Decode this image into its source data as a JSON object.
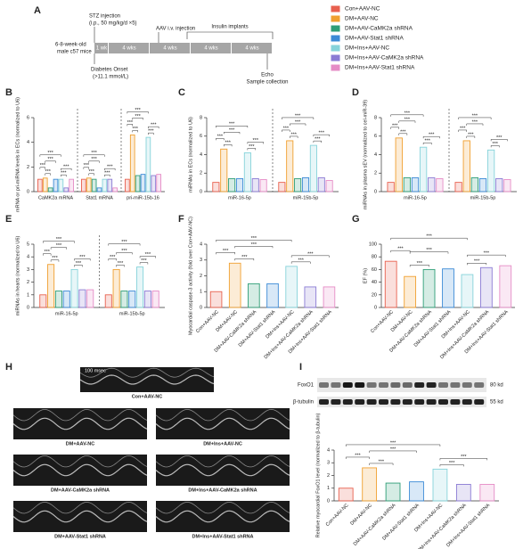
{
  "panel_a": {
    "panel_label": "A",
    "stz": "STZ injection",
    "stz_dose": "(i.p., 50 mg/kg/d ×5)",
    "aav": "AAV i.v. injection",
    "insulin": "Insulin implants",
    "mice_1": "6-8-week-old",
    "mice_2": "male c57 mice",
    "segments": [
      "1 wk",
      "4 wks",
      "4 wks",
      "4 wks",
      "4 wks"
    ],
    "onset_1": "Diabetes Onset",
    "onset_2": "(>11.1 mmol/L)",
    "echo": "Echo",
    "sample": "Sample collection"
  },
  "panel_h": {
    "panel_label": "H",
    "scale": "100 msec"
  },
  "panel_i_blot": {
    "panel_label": "I",
    "bands": [
      "FoxO1",
      "β-tubulin"
    ],
    "sizes": [
      "80 kd",
      "55 kd"
    ]
  },
  "chart_data": [
    {
      "type": "bar",
      "panel_label": "B",
      "ylabel": "mRNA or pri-miRNA levels in ECs (normalized to U6)",
      "categories": [
        "CaMK2a mRNA",
        "Stat1 mRNA",
        "pri-miR-15b-16"
      ],
      "series": [
        {
          "name": "Con+AAV-NC",
          "color": "#e8604f",
          "values": [
            1,
            1,
            1
          ]
        },
        {
          "name": "DM+AAV-NC",
          "color": "#f0a030",
          "values": [
            1.1,
            1.1,
            4.6
          ]
        },
        {
          "name": "DM+AAV-CaMK2a shRNA",
          "color": "#2f9e77",
          "values": [
            0.3,
            1.0,
            1.3
          ]
        },
        {
          "name": "DM+AAV-Stat1 shRNA",
          "color": "#3b8ad6",
          "values": [
            1.0,
            0.3,
            1.4
          ]
        },
        {
          "name": "DM+Ins+AAV-NC",
          "color": "#86d3da",
          "values": [
            1.0,
            1.0,
            4.4
          ]
        },
        {
          "name": "DM+Ins+AAV-CaMK2a shRNA",
          "color": "#8b7bd4",
          "values": [
            0.3,
            1.0,
            1.3
          ]
        },
        {
          "name": "DM+Ins+AAV-Stat1 shRNA",
          "color": "#e58cc6",
          "values": [
            1.0,
            0.3,
            1.4
          ]
        }
      ],
      "ylim": [
        0,
        6
      ],
      "yticks": [
        0,
        2,
        4,
        6
      ],
      "annotations": [
        "***",
        "***",
        "***",
        "***",
        "***",
        "***",
        "***",
        "***",
        "***",
        "***",
        "***",
        "***",
        "***",
        "***",
        "***",
        "***",
        "***",
        "***"
      ]
    },
    {
      "type": "bar",
      "panel_label": "C",
      "ylabel": "miRNAs in ECs (normalized to U6)",
      "categories": [
        "miR-16-5p",
        "miR-15b-5p"
      ],
      "series": [
        {
          "color": "#e8604f",
          "values": [
            1,
            1
          ]
        },
        {
          "color": "#f0a030",
          "values": [
            4.6,
            5.5
          ]
        },
        {
          "color": "#2f9e77",
          "values": [
            1.4,
            1.4
          ]
        },
        {
          "color": "#3b8ad6",
          "values": [
            1.4,
            1.5
          ]
        },
        {
          "color": "#86d3da",
          "values": [
            4.2,
            5.0
          ]
        },
        {
          "color": "#8b7bd4",
          "values": [
            1.4,
            1.5
          ]
        },
        {
          "color": "#e58cc6",
          "values": [
            1.3,
            1.2
          ]
        }
      ],
      "ylim": [
        0,
        8
      ],
      "yticks": [
        0,
        2,
        4,
        6,
        8
      ],
      "annotations": [
        "***",
        "***",
        "***",
        "***",
        "***",
        "***",
        "***",
        "***",
        "***",
        "***",
        "***",
        "***"
      ]
    },
    {
      "type": "bar",
      "panel_label": "D",
      "ylabel": "miRNAs in plasma sEV (normalized to cel-miR-39)",
      "categories": [
        "miR-16-5p",
        "miR-15b-5p"
      ],
      "series": [
        {
          "color": "#e8604f",
          "values": [
            1,
            1
          ]
        },
        {
          "color": "#f0a030",
          "values": [
            5.8,
            5.5
          ]
        },
        {
          "color": "#2f9e77",
          "values": [
            1.5,
            1.5
          ]
        },
        {
          "color": "#3b8ad6",
          "values": [
            1.5,
            1.4
          ]
        },
        {
          "color": "#86d3da",
          "values": [
            4.8,
            4.5
          ]
        },
        {
          "color": "#8b7bd4",
          "values": [
            1.5,
            1.4
          ]
        },
        {
          "color": "#e58cc6",
          "values": [
            1.4,
            1.3
          ]
        }
      ],
      "ylim": [
        0,
        8
      ],
      "yticks": [
        0,
        2,
        4,
        6,
        8
      ],
      "annotations": [
        "***",
        "***",
        "***",
        "***",
        "***",
        "***",
        "***",
        "***",
        "***",
        "***",
        "***",
        "***"
      ]
    },
    {
      "type": "bar",
      "panel_label": "E",
      "ylabel": "miRNAs in hearts (normalized to U6)",
      "categories": [
        "miR-16-5p",
        "miR-15b-5p"
      ],
      "series": [
        {
          "color": "#e8604f",
          "values": [
            1,
            1
          ]
        },
        {
          "color": "#f0a030",
          "values": [
            3.4,
            3.0
          ]
        },
        {
          "color": "#2f9e77",
          "values": [
            1.3,
            1.3
          ]
        },
        {
          "color": "#3b8ad6",
          "values": [
            1.3,
            1.3
          ]
        },
        {
          "color": "#86d3da",
          "values": [
            3.0,
            3.2
          ]
        },
        {
          "color": "#8b7bd4",
          "values": [
            1.4,
            1.3
          ]
        },
        {
          "color": "#e58cc6",
          "values": [
            1.4,
            1.3
          ]
        }
      ],
      "ylim": [
        0,
        5
      ],
      "yticks": [
        0,
        1,
        2,
        3,
        4,
        5
      ],
      "annotations": [
        "***",
        "***",
        "***",
        "***",
        "***",
        "***",
        "***",
        "***",
        "***",
        "***",
        "***",
        "***"
      ]
    },
    {
      "type": "bar",
      "panel_label": "F",
      "ylabel": "Myocardial caspase-3 activity (fold over Con+AAV-NC)",
      "categories": [
        "Con+AAV-NC",
        "DM+AAV-NC",
        "DM+AAV-CaMK2a shRNA",
        "DM+AAV-Stat1 shRNA",
        "DM+Ins+AAV-NC",
        "DM+Ins+AAV-CaMK2a shRNA",
        "DM+Ins+AAV-Stat1 shRNA"
      ],
      "values": [
        1,
        2.8,
        1.5,
        1.5,
        2.6,
        1.3,
        1.3
      ],
      "colors": [
        "#e8604f",
        "#f0a030",
        "#2f9e77",
        "#3b8ad6",
        "#86d3da",
        "#8b7bd4",
        "#e58cc6"
      ],
      "ylim": [
        0,
        4
      ],
      "yticks": [
        0,
        1,
        2,
        3,
        4
      ],
      "annotations": [
        "***",
        "***",
        "***",
        "***",
        "***",
        "***"
      ]
    },
    {
      "type": "bar",
      "panel_label": "G",
      "ylabel": "EF (%)",
      "categories": [
        "Con+AAV-NC",
        "DM+AAV-NC",
        "DM+AAV-CaMK2a shRNA",
        "DM+AAV-Stat1 shRNA",
        "DM+Ins+AAV-NC",
        "DM+Ins+AAV-CaMK2a shRNA",
        "DM+Ins+AAV-Stat1 shRNA"
      ],
      "values": [
        73,
        49,
        60,
        61,
        52,
        63,
        66
      ],
      "colors": [
        "#e8604f",
        "#f0a030",
        "#2f9e77",
        "#3b8ad6",
        "#86d3da",
        "#8b7bd4",
        "#e58cc6"
      ],
      "ylim": [
        0,
        100
      ],
      "yticks": [
        0,
        20,
        40,
        60,
        80,
        100
      ],
      "annotations": [
        "***",
        "***",
        "***",
        "***",
        "***",
        "***"
      ]
    },
    {
      "type": "bar",
      "panel_label": "",
      "ylabel": "Relative myocardial FoxO1 level (normalized to β-tubulin)",
      "categories": [
        "Con+AAV-NC",
        "DM+AAV-NC",
        "DM+AAV-CaMK2a shRNA",
        "DM+AAV-Stat1 shRNA",
        "DM+Ins+AAV-NC",
        "DM+Ins+AAV-CaMK2a shRNA",
        "DM+Ins+AAV-Stat1 shRNA"
      ],
      "values": [
        1,
        2.6,
        1.4,
        1.5,
        2.5,
        1.3,
        1.3
      ],
      "colors": [
        "#e8604f",
        "#f0a030",
        "#2f9e77",
        "#3b8ad6",
        "#86d3da",
        "#8b7bd4",
        "#e58cc6"
      ],
      "ylim": [
        0,
        4
      ],
      "yticks": [
        0,
        1,
        2,
        3,
        4
      ],
      "annotations": [
        "***",
        "***",
        "***",
        "***",
        "***",
        "***"
      ]
    }
  ]
}
